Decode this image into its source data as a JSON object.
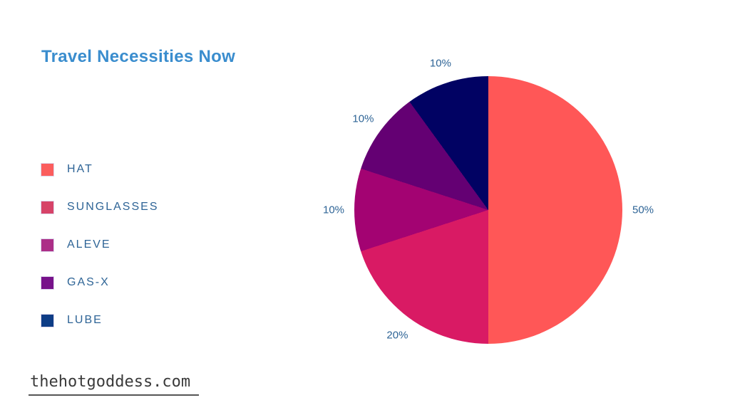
{
  "page": {
    "background": "#ffffff",
    "watermark": "thehotgoddess.com"
  },
  "chart_data": {
    "type": "pie",
    "title": "Travel Necessities Now",
    "title_color": "#3a8dce",
    "label_color": "#2e6496",
    "start_angle_deg": 0,
    "direction": "clockwise",
    "legend_position": "left",
    "grid": false,
    "items": [
      {
        "label": "HAT",
        "value_pct": 50,
        "pct_label": "50%",
        "color": "#ff5757",
        "swatch_color": "#fb5d5d"
      },
      {
        "label": "SUNGLASSES",
        "value_pct": 20,
        "pct_label": "20%",
        "color": "#d91a64",
        "swatch_color": "#d64368"
      },
      {
        "label": "ALEVE",
        "value_pct": 10,
        "pct_label": "10%",
        "color": "#a30372",
        "swatch_color": "#ac2e87"
      },
      {
        "label": "GAS-X",
        "value_pct": 10,
        "pct_label": "10%",
        "color": "#640073",
        "swatch_color": "#77128a"
      },
      {
        "label": "LUBE",
        "value_pct": 10,
        "pct_label": "10%",
        "color": "#010263",
        "swatch_color": "#0e3d86"
      }
    ]
  }
}
